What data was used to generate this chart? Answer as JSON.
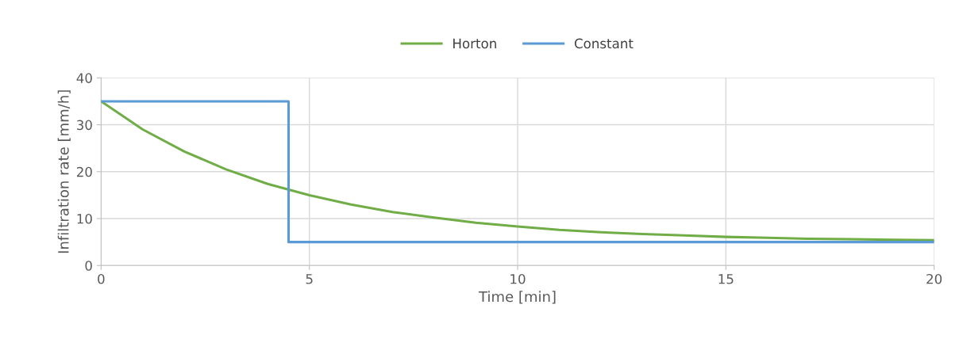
{
  "chart_data": {
    "type": "line",
    "xlabel": "Time [min]",
    "ylabel": "Infiltration rate [mm/h]",
    "xlim": [
      0,
      20
    ],
    "xticks": [
      0,
      5,
      10,
      15,
      20
    ],
    "ylim": [
      0,
      40
    ],
    "yticks": [
      0,
      10,
      20,
      30,
      40
    ],
    "grid": true,
    "legend": "top",
    "marker": "none",
    "line_style": "solid",
    "series": [
      {
        "name": "Horton",
        "color": "#70ad47",
        "x": [
          0,
          1,
          2,
          3,
          4,
          5,
          6,
          7,
          8,
          9,
          10,
          11,
          12,
          13,
          14,
          15,
          16,
          17,
          18,
          19,
          20
        ],
        "values": [
          35,
          29,
          24.3,
          20.5,
          17.4,
          15,
          13,
          11.4,
          10.2,
          9.1,
          8.3,
          7.6,
          7.1,
          6.7,
          6.4,
          6.1,
          5.9,
          5.7,
          5.6,
          5.5,
          5.4
        ]
      },
      {
        "name": "Constant",
        "color": "#5b9bd5",
        "type": "step",
        "x": [
          0,
          4.5,
          20
        ],
        "values": [
          35,
          5,
          5
        ]
      }
    ]
  }
}
